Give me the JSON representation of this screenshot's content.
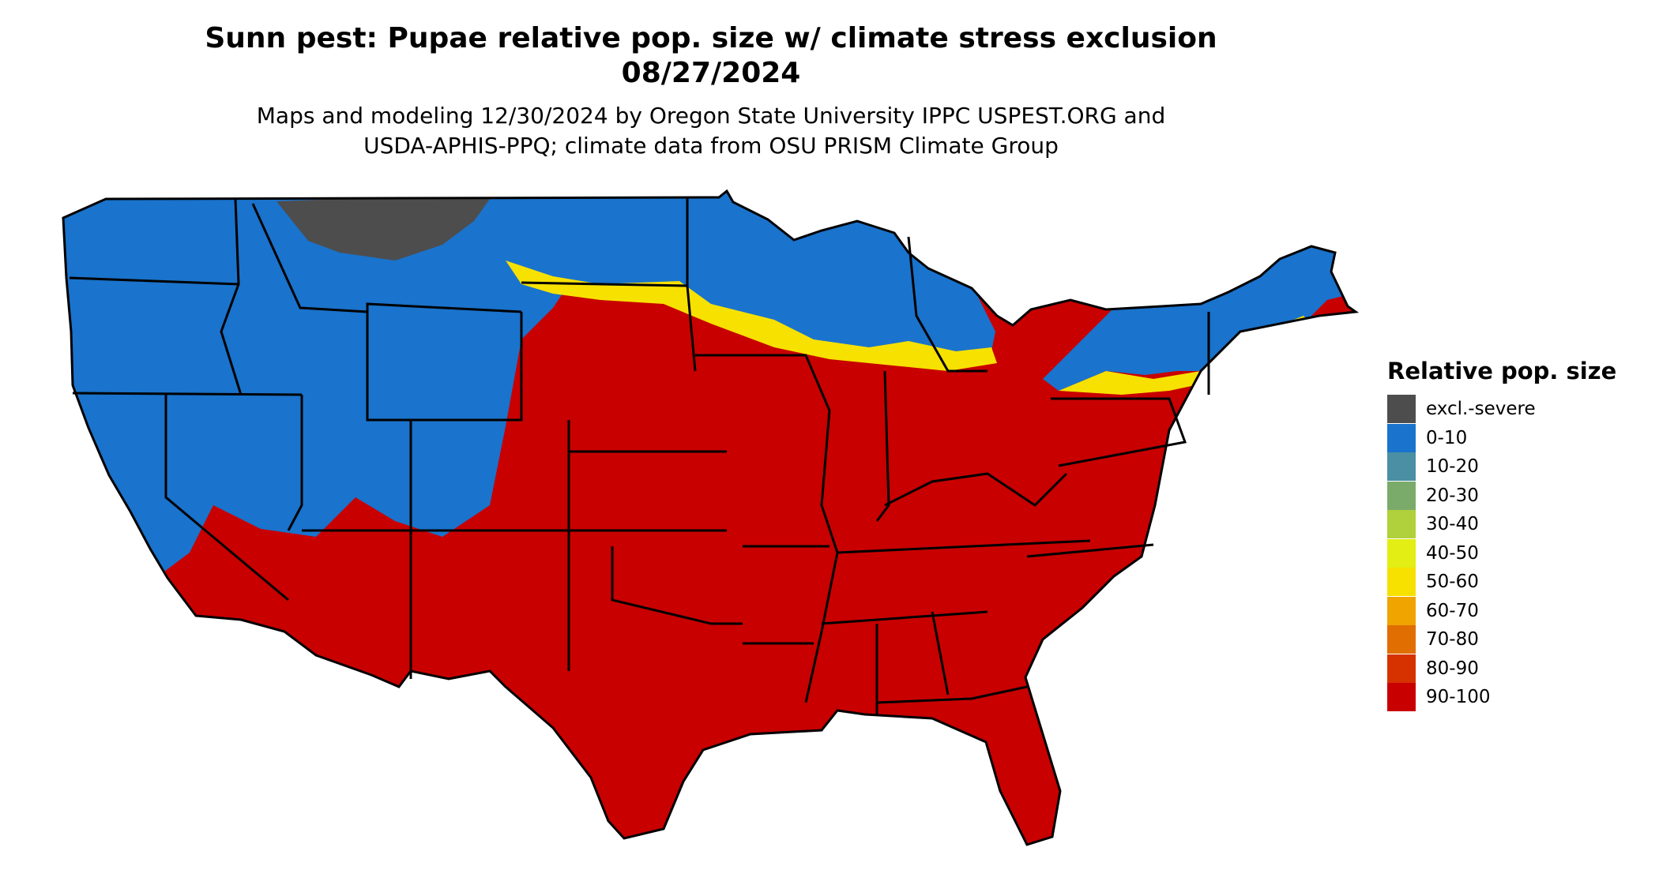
{
  "title_line1": "Sunn pest: Pupae relative pop. size w/ climate stress exclusion",
  "title_line2": "08/27/2024",
  "subtitle_line1": "Maps and modeling 12/30/2024 by Oregon State University IPPC USPEST.ORG and",
  "subtitle_line2": "USDA-APHIS-PPQ; climate data from OSU PRISM Climate Group",
  "legend": {
    "title": "Relative pop. size",
    "items": [
      {
        "label": "excl.-severe",
        "color": "#4d4d4d"
      },
      {
        "label": "0-10",
        "color": "#1a73cc"
      },
      {
        "label": "10-20",
        "color": "#4a8fa3"
      },
      {
        "label": "20-30",
        "color": "#7aab6a"
      },
      {
        "label": "30-40",
        "color": "#b0d13c"
      },
      {
        "label": "40-50",
        "color": "#e3ee14"
      },
      {
        "label": "50-60",
        "color": "#f7e100"
      },
      {
        "label": "60-70",
        "color": "#efa400"
      },
      {
        "label": "70-80",
        "color": "#e06e00"
      },
      {
        "label": "80-90",
        "color": "#d63200"
      },
      {
        "label": "90-100",
        "color": "#c80000"
      }
    ]
  },
  "map_colors": {
    "excluded": "#4d4d4d",
    "low": "#1a73cc",
    "mid": "#f7e100",
    "high": "#c80000",
    "border": "#000000"
  }
}
